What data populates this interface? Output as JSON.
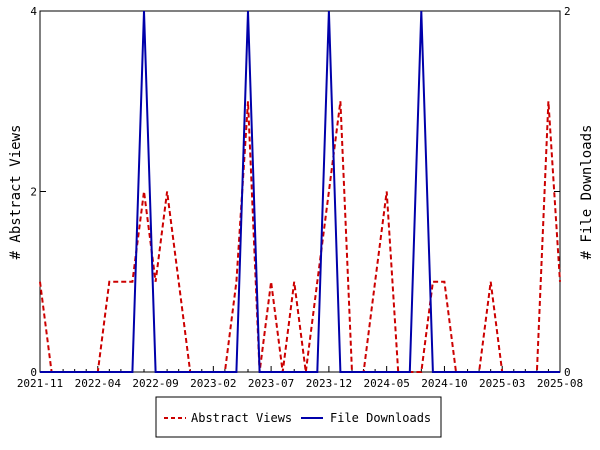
{
  "chart_data": {
    "type": "line",
    "x": [
      "2021-11",
      "2021-12",
      "2022-01",
      "2022-02",
      "2022-03",
      "2022-04",
      "2022-05",
      "2022-06",
      "2022-07",
      "2022-08",
      "2022-09",
      "2022-10",
      "2022-11",
      "2022-12",
      "2023-01",
      "2023-02",
      "2023-03",
      "2023-04",
      "2023-05",
      "2023-06",
      "2023-07",
      "2023-08",
      "2023-09",
      "2023-10",
      "2023-11",
      "2023-12",
      "2024-01",
      "2024-02",
      "2024-03",
      "2024-04",
      "2024-05",
      "2024-06",
      "2024-07",
      "2024-08",
      "2024-09",
      "2024-10",
      "2024-11",
      "2024-12",
      "2025-01",
      "2025-02",
      "2025-03",
      "2025-04",
      "2025-05",
      "2025-06",
      "2025-07",
      "2025-08"
    ],
    "x_tick_labels": [
      "2021-11",
      "2022-04",
      "2022-09",
      "2023-02",
      "2023-07",
      "2023-12",
      "2024-05",
      "2024-10",
      "2025-03",
      "2025-08"
    ],
    "series": [
      {
        "name": "Abstract Views",
        "axis": "left",
        "color": "#cc0000",
        "style": "dashed",
        "values": [
          1,
          0,
          0,
          0,
          0,
          0,
          1,
          1,
          1,
          2,
          1,
          2,
          1,
          0,
          0,
          0,
          0,
          1,
          3,
          0,
          1,
          0,
          1,
          0,
          1,
          2,
          3,
          0,
          0,
          1,
          2,
          0,
          0,
          0,
          1,
          1,
          0,
          0,
          0,
          1,
          0,
          0,
          0,
          0,
          3,
          1
        ]
      },
      {
        "name": "File Downloads",
        "axis": "right",
        "color": "#0000aa",
        "style": "solid",
        "values": [
          0,
          0,
          0,
          0,
          0,
          0,
          0,
          0,
          0,
          2,
          0,
          0,
          0,
          0,
          0,
          0,
          0,
          0,
          2,
          0,
          0,
          0,
          0,
          0,
          0,
          2,
          0,
          0,
          0,
          0,
          0,
          0,
          0,
          2,
          0,
          0,
          0,
          0,
          0,
          0,
          0,
          0,
          0,
          0,
          0,
          0
        ]
      }
    ],
    "ylabel_left": "# Abstract Views",
    "ylabel_right": "# File Downloads",
    "ylim_left": [
      0,
      4
    ],
    "ylim_right": [
      0,
      2
    ],
    "yticks_left": [
      "0",
      "2",
      "4"
    ],
    "yticks_right": [
      "0",
      "1",
      "2"
    ],
    "legend_position": "bottom",
    "grid": false
  }
}
